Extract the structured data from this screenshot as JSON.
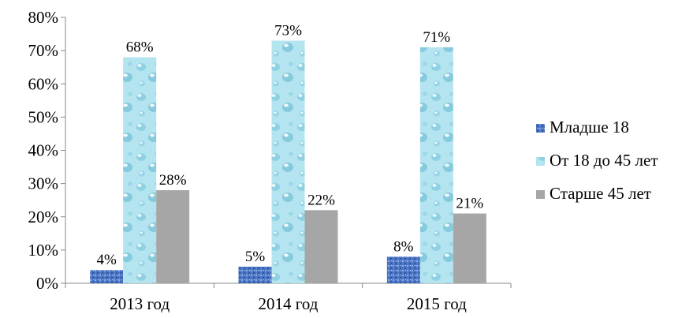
{
  "chart_data": {
    "type": "bar",
    "title": "",
    "xlabel": "",
    "ylabel": "",
    "categories": [
      "2013 год",
      "2014 год",
      "2015 год"
    ],
    "series": [
      {
        "name": "Младше 18",
        "values": [
          4,
          5,
          8
        ],
        "value_labels": [
          "4%",
          "5%",
          "8%"
        ],
        "color": "#4f79c8",
        "pattern": "blue-texture"
      },
      {
        "name": "От 18 до 45 лет",
        "values": [
          68,
          73,
          71
        ],
        "value_labels": [
          "68%",
          "73%",
          "71%"
        ],
        "color": "#aee2ef",
        "pattern": "water-drops"
      },
      {
        "name": "Старше 45 лет",
        "values": [
          28,
          22,
          21
        ],
        "value_labels": [
          "28%",
          "22%",
          "21%"
        ],
        "color": "#a6a6a6",
        "pattern": "solid"
      }
    ],
    "y_ticks": [
      "0%",
      "10%",
      "20%",
      "30%",
      "40%",
      "50%",
      "60%",
      "70%",
      "80%"
    ],
    "ylim": [
      0,
      80
    ],
    "grid": false,
    "legend": "right"
  }
}
